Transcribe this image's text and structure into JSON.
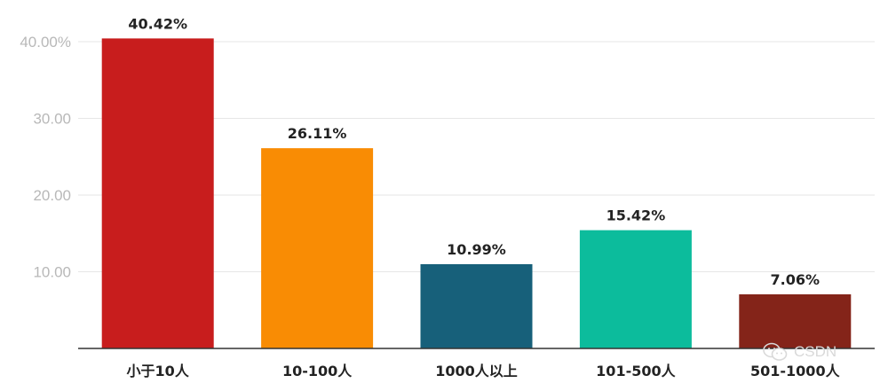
{
  "chart_data": {
    "type": "bar",
    "categories": [
      "小于10人",
      "10-100人",
      "1000人以上",
      "101-500人",
      "501-1000人"
    ],
    "values": [
      40.42,
      26.11,
      10.99,
      15.42,
      7.06
    ],
    "data_labels": [
      "40.42%",
      "26.11%",
      "10.99%",
      "15.42%",
      "7.06%"
    ],
    "colors": [
      "#c81d1d",
      "#f98c04",
      "#17607a",
      "#0cbc9c",
      "#842419"
    ],
    "ylim": [
      0,
      40
    ],
    "yticks": [
      10,
      20,
      30,
      40
    ],
    "ytick_labels": [
      "10.00",
      "20.00",
      "30.00",
      "40.00%"
    ],
    "grid": true,
    "title": "",
    "xlabel": "",
    "ylabel": ""
  },
  "watermark": {
    "text": "CSDN",
    "icon": "wechat-icon"
  }
}
